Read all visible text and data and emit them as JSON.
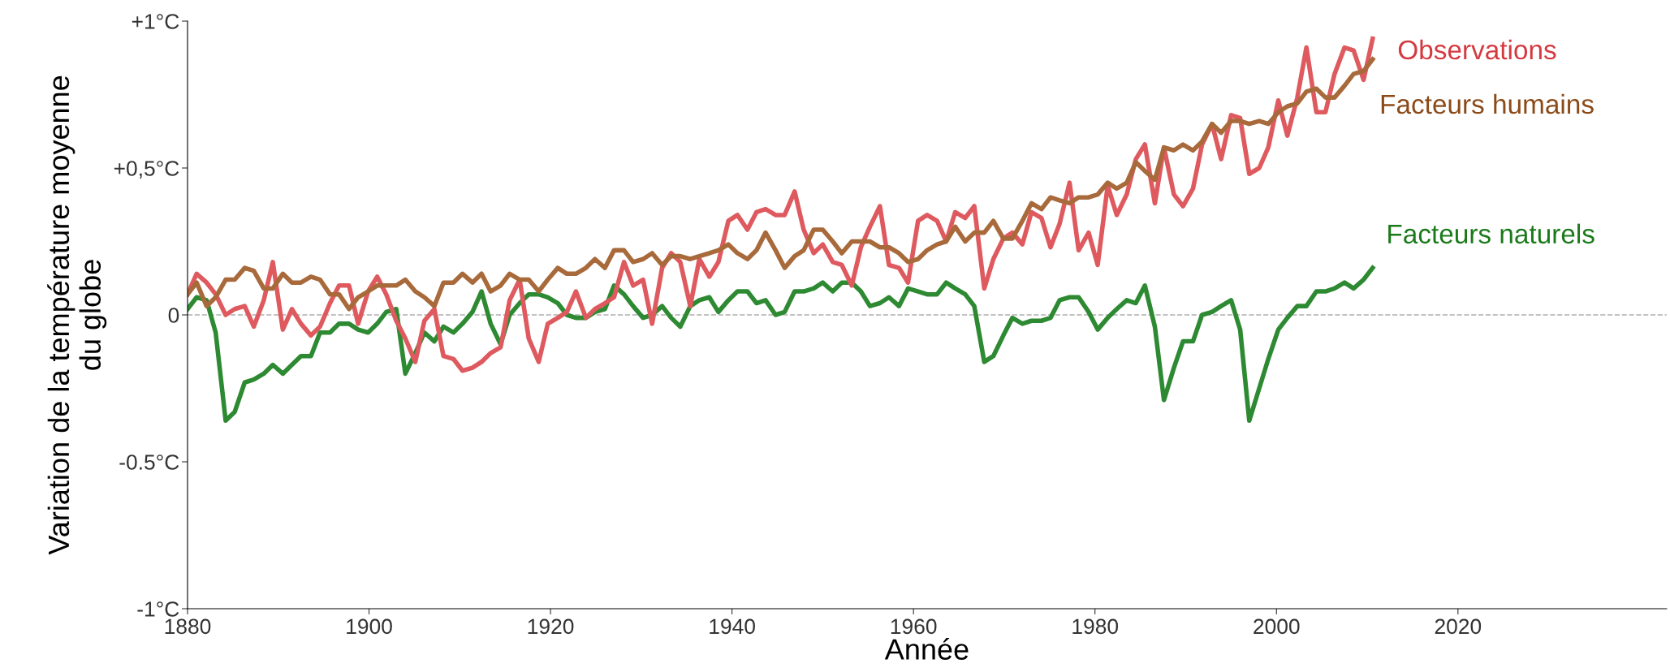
{
  "chart_data": {
    "type": "line",
    "xlabel": "Année",
    "ylabel": "Variation de la température moyenne\ndu globe",
    "x": [
      1880.0,
      1881.0,
      1882.1,
      1883.1,
      1884.2,
      1885.2,
      1886.3,
      1887.3,
      1888.4,
      1889.4,
      1890.5,
      1891.5,
      1892.5,
      1893.6,
      1894.6,
      1895.7,
      1896.7,
      1897.8,
      1898.8,
      1899.9,
      1900.9,
      1901.9,
      1903.0,
      1904.0,
      1905.1,
      1906.1,
      1907.2,
      1908.2,
      1909.3,
      1910.3,
      1911.4,
      1912.4,
      1913.4,
      1914.5,
      1915.5,
      1916.6,
      1917.6,
      1918.7,
      1919.7,
      1920.8,
      1921.8,
      1922.8,
      1923.9,
      1924.9,
      1926.0,
      1927.0,
      1928.1,
      1929.1,
      1930.2,
      1931.2,
      1932.3,
      1933.3,
      1934.3,
      1935.4,
      1936.4,
      1937.5,
      1938.5,
      1939.6,
      1940.6,
      1941.7,
      1942.7,
      1943.7,
      1944.8,
      1945.8,
      1946.9,
      1947.9,
      1949.0,
      1950.0,
      1951.1,
      1952.1,
      1953.2,
      1954.2,
      1955.2,
      1956.3,
      1957.3,
      1958.4,
      1959.4,
      1960.5,
      1961.5,
      1962.6,
      1963.6,
      1964.6,
      1965.7,
      1966.7,
      1967.8,
      1968.8,
      1969.9,
      1970.9,
      1972.0,
      1973.0,
      1974.1,
      1975.1,
      1976.1,
      1977.2,
      1978.2,
      1979.3,
      1980.3,
      1981.4,
      1982.4,
      1983.5,
      1984.5,
      1985.5,
      1986.6,
      1987.6,
      1988.7,
      1989.7,
      1990.8,
      1991.8,
      1992.9,
      1993.9,
      1995.0,
      1996.0,
      1997.0,
      1998.1,
      1999.1,
      2000.2,
      2001.2,
      2002.3,
      2003.3,
      2004.4,
      2005.4,
      2006.4,
      2007.5,
      2008.5,
      2009.6,
      2010.6
    ],
    "series": [
      {
        "name": "Facteurs naturels",
        "color": "#2e8a32",
        "values": [
          0.02,
          0.06,
          0.05,
          -0.06,
          -0.36,
          -0.33,
          -0.23,
          -0.22,
          -0.2,
          -0.17,
          -0.2,
          -0.17,
          -0.14,
          -0.14,
          -0.06,
          -0.06,
          -0.03,
          -0.03,
          -0.05,
          -0.06,
          -0.03,
          0.01,
          0.02,
          -0.2,
          -0.13,
          -0.06,
          -0.09,
          -0.04,
          -0.06,
          -0.03,
          0.01,
          0.08,
          -0.03,
          -0.1,
          0.0,
          0.04,
          0.07,
          0.07,
          0.06,
          0.04,
          0.0,
          -0.01,
          -0.01,
          0.01,
          0.02,
          0.1,
          0.07,
          0.03,
          -0.01,
          0.0,
          0.03,
          -0.01,
          -0.04,
          0.03,
          0.05,
          0.06,
          0.01,
          0.05,
          0.08,
          0.08,
          0.04,
          0.05,
          0.0,
          0.01,
          0.08,
          0.08,
          0.09,
          0.11,
          0.08,
          0.11,
          0.11,
          0.08,
          0.03,
          0.04,
          0.06,
          0.03,
          0.09,
          0.08,
          0.07,
          0.07,
          0.11,
          0.09,
          0.07,
          0.03,
          -0.16,
          -0.14,
          -0.07,
          -0.01,
          -0.03,
          -0.02,
          -0.02,
          -0.01,
          0.05,
          0.06,
          0.06,
          0.01,
          -0.05,
          -0.01,
          0.02,
          0.05,
          0.04,
          0.1,
          -0.04,
          -0.29,
          -0.18,
          -0.09,
          -0.09,
          0.0,
          0.01,
          0.03,
          0.05,
          -0.05,
          -0.36,
          -0.25,
          -0.15,
          -0.05,
          -0.01,
          0.03,
          0.03,
          0.08,
          0.08,
          0.09,
          0.11,
          0.09,
          0.12,
          0.16
        ]
      },
      {
        "name": "Observations",
        "color": "#de5a5f",
        "values": [
          0.07,
          0.14,
          0.11,
          0.07,
          0.0,
          0.02,
          0.03,
          -0.04,
          0.05,
          0.18,
          -0.05,
          0.02,
          -0.03,
          -0.07,
          -0.04,
          0.04,
          0.1,
          0.1,
          -0.03,
          0.08,
          0.13,
          0.07,
          -0.02,
          -0.08,
          -0.16,
          -0.02,
          0.02,
          -0.14,
          -0.15,
          -0.19,
          -0.18,
          -0.16,
          -0.13,
          -0.11,
          0.05,
          0.12,
          -0.08,
          -0.16,
          -0.03,
          -0.01,
          0.01,
          0.08,
          -0.01,
          0.02,
          0.04,
          0.06,
          0.18,
          0.1,
          0.12,
          -0.03,
          0.16,
          0.21,
          0.18,
          0.03,
          0.19,
          0.13,
          0.18,
          0.32,
          0.34,
          0.29,
          0.35,
          0.36,
          0.34,
          0.34,
          0.42,
          0.29,
          0.21,
          0.24,
          0.18,
          0.17,
          0.1,
          0.23,
          0.3,
          0.37,
          0.17,
          0.16,
          0.11,
          0.32,
          0.34,
          0.32,
          0.25,
          0.35,
          0.33,
          0.37,
          0.09,
          0.19,
          0.26,
          0.28,
          0.24,
          0.35,
          0.33,
          0.23,
          0.31,
          0.45,
          0.22,
          0.28,
          0.17,
          0.44,
          0.34,
          0.41,
          0.53,
          0.58,
          0.38,
          0.57,
          0.41,
          0.37,
          0.43,
          0.58,
          0.65,
          0.53,
          0.68,
          0.67,
          0.48,
          0.5,
          0.57,
          0.73,
          0.61,
          0.74,
          0.91,
          0.69,
          0.69,
          0.82,
          0.91,
          0.9,
          0.8,
          0.94
        ]
      },
      {
        "name": "Facteurs humains",
        "color": "#a86a3b",
        "values": [
          0.07,
          0.11,
          0.03,
          0.06,
          0.12,
          0.12,
          0.16,
          0.15,
          0.09,
          0.09,
          0.14,
          0.11,
          0.11,
          0.13,
          0.12,
          0.07,
          0.07,
          0.02,
          0.06,
          0.08,
          0.1,
          0.1,
          0.1,
          0.12,
          0.08,
          0.06,
          0.03,
          0.11,
          0.11,
          0.14,
          0.11,
          0.14,
          0.08,
          0.1,
          0.14,
          0.12,
          0.12,
          0.08,
          0.12,
          0.16,
          0.14,
          0.14,
          0.16,
          0.19,
          0.16,
          0.22,
          0.22,
          0.18,
          0.19,
          0.21,
          0.17,
          0.2,
          0.2,
          0.19,
          0.2,
          0.21,
          0.22,
          0.24,
          0.21,
          0.19,
          0.22,
          0.28,
          0.22,
          0.16,
          0.2,
          0.22,
          0.29,
          0.29,
          0.25,
          0.21,
          0.25,
          0.25,
          0.25,
          0.23,
          0.23,
          0.21,
          0.18,
          0.19,
          0.22,
          0.24,
          0.25,
          0.3,
          0.25,
          0.28,
          0.28,
          0.32,
          0.26,
          0.26,
          0.32,
          0.38,
          0.36,
          0.4,
          0.39,
          0.38,
          0.4,
          0.4,
          0.41,
          0.45,
          0.43,
          0.45,
          0.52,
          0.49,
          0.46,
          0.57,
          0.56,
          0.58,
          0.56,
          0.59,
          0.65,
          0.62,
          0.66,
          0.66,
          0.65,
          0.66,
          0.65,
          0.69,
          0.71,
          0.72,
          0.76,
          0.77,
          0.74,
          0.74,
          0.78,
          0.82,
          0.83,
          0.87
        ]
      }
    ],
    "xlim": [
      1880,
      2043
    ],
    "xticks": [
      1880,
      1900,
      1920,
      1940,
      1960,
      1980,
      2000,
      2020
    ],
    "ylim": [
      -1,
      1
    ],
    "yticks": [
      {
        "value": -1,
        "label": "-1°C"
      },
      {
        "value": -0.5,
        "label": "-0.5°C"
      },
      0,
      {
        "value": 0.5,
        "label": "+0,5°C"
      },
      {
        "value": 1,
        "label": "+1°C"
      }
    ],
    "ref_lines": [
      {
        "axis": "y",
        "value": 0,
        "color": "#b0b0b0",
        "line_style": "dashed"
      }
    ],
    "grid": false,
    "legend": false,
    "line_style": "solid",
    "marker": "none"
  }
}
